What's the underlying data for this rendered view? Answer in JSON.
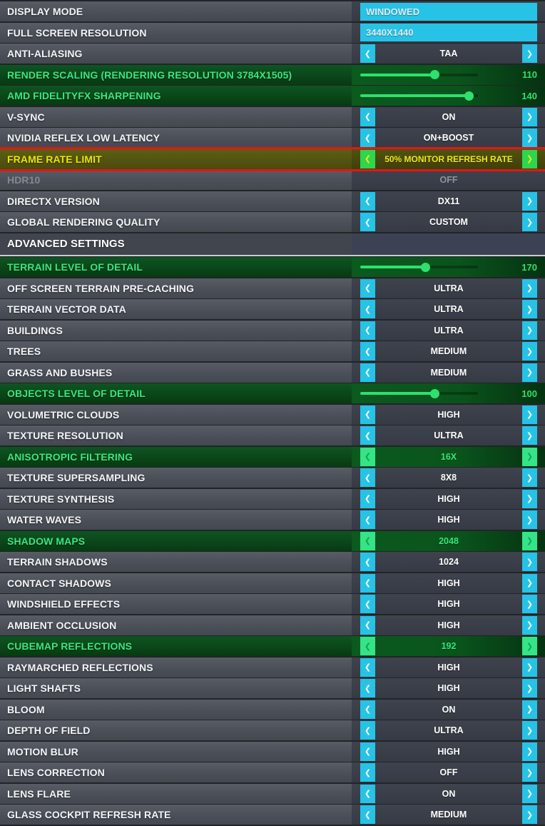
{
  "icons": {
    "prev": "❮",
    "next": "❯"
  },
  "colors": {
    "accent_cyan": "#26c3e6",
    "accent_green": "#2ee06e",
    "selected_yellow": "#ece400",
    "selected_border_red": "#e81414"
  },
  "rows": [
    {
      "label": "DISPLAY MODE",
      "type": "input",
      "value": "WINDOWED",
      "state": "normal"
    },
    {
      "label": "FULL SCREEN RESOLUTION",
      "type": "input",
      "value": "3440X1440",
      "state": "normal"
    },
    {
      "label": "ANTI-ALIASING",
      "type": "stepper",
      "value": "TAA",
      "state": "normal"
    },
    {
      "label": "RENDER SCALING (RENDERING RESOLUTION 3784X1505)",
      "type": "slider",
      "value": "110",
      "thumb_percent": 63,
      "state": "modified"
    },
    {
      "label": "AMD FIDELITYFX SHARPENING",
      "type": "slider",
      "value": "140",
      "thumb_percent": 92,
      "state": "modified"
    },
    {
      "label": "V-SYNC",
      "type": "stepper",
      "value": "ON",
      "state": "normal"
    },
    {
      "label": "NVIDIA REFLEX LOW LATENCY",
      "type": "stepper",
      "value": "ON+BOOST",
      "state": "normal"
    },
    {
      "label": "FRAME RATE LIMIT",
      "type": "stepper",
      "value": "50% MONITOR REFRESH RATE",
      "state": "selected"
    },
    {
      "label": "HDR10",
      "type": "disabled",
      "value": "OFF",
      "state": "disabled"
    },
    {
      "label": "DIRECTX VERSION",
      "type": "stepper",
      "value": "DX11",
      "state": "normal"
    },
    {
      "label": "GLOBAL RENDERING QUALITY",
      "type": "stepper",
      "value": "CUSTOM",
      "state": "normal"
    },
    {
      "label": "ADVANCED SETTINGS",
      "type": "header",
      "value": "",
      "state": "normal"
    },
    {
      "label": "TERRAIN LEVEL OF DETAIL",
      "type": "slider",
      "value": "170",
      "thumb_percent": 55,
      "state": "modified"
    },
    {
      "label": "OFF SCREEN TERRAIN PRE-CACHING",
      "type": "stepper",
      "value": "ULTRA",
      "state": "normal"
    },
    {
      "label": "TERRAIN VECTOR DATA",
      "type": "stepper",
      "value": "ULTRA",
      "state": "normal"
    },
    {
      "label": "BUILDINGS",
      "type": "stepper",
      "value": "ULTRA",
      "state": "normal"
    },
    {
      "label": "TREES",
      "type": "stepper",
      "value": "MEDIUM",
      "state": "normal"
    },
    {
      "label": "GRASS AND BUSHES",
      "type": "stepper",
      "value": "MEDIUM",
      "state": "normal"
    },
    {
      "label": "OBJECTS LEVEL OF DETAIL",
      "type": "slider",
      "value": "100",
      "thumb_percent": 63,
      "state": "modified"
    },
    {
      "label": "VOLUMETRIC CLOUDS",
      "type": "stepper",
      "value": "HIGH",
      "state": "normal"
    },
    {
      "label": "TEXTURE RESOLUTION",
      "type": "stepper",
      "value": "ULTRA",
      "state": "normal"
    },
    {
      "label": "ANISOTROPIC FILTERING",
      "type": "stepper",
      "value": "16X",
      "state": "modified"
    },
    {
      "label": "TEXTURE SUPERSAMPLING",
      "type": "stepper",
      "value": "8X8",
      "state": "normal"
    },
    {
      "label": "TEXTURE SYNTHESIS",
      "type": "stepper",
      "value": "HIGH",
      "state": "normal"
    },
    {
      "label": "WATER WAVES",
      "type": "stepper",
      "value": "HIGH",
      "state": "normal"
    },
    {
      "label": "SHADOW MAPS",
      "type": "stepper",
      "value": "2048",
      "state": "modified"
    },
    {
      "label": "TERRAIN SHADOWS",
      "type": "stepper",
      "value": "1024",
      "state": "normal"
    },
    {
      "label": "CONTACT SHADOWS",
      "type": "stepper",
      "value": "HIGH",
      "state": "normal"
    },
    {
      "label": "WINDSHIELD EFFECTS",
      "type": "stepper",
      "value": "HIGH",
      "state": "normal"
    },
    {
      "label": "AMBIENT OCCLUSION",
      "type": "stepper",
      "value": "HIGH",
      "state": "normal"
    },
    {
      "label": "CUBEMAP REFLECTIONS",
      "type": "stepper",
      "value": "192",
      "state": "modified"
    },
    {
      "label": "RAYMARCHED REFLECTIONS",
      "type": "stepper",
      "value": "HIGH",
      "state": "normal"
    },
    {
      "label": "LIGHT SHAFTS",
      "type": "stepper",
      "value": "HIGH",
      "state": "normal"
    },
    {
      "label": "BLOOM",
      "type": "stepper",
      "value": "ON",
      "state": "normal"
    },
    {
      "label": "DEPTH OF FIELD",
      "type": "stepper",
      "value": "ULTRA",
      "state": "normal"
    },
    {
      "label": "MOTION BLUR",
      "type": "stepper",
      "value": "HIGH",
      "state": "normal"
    },
    {
      "label": "LENS CORRECTION",
      "type": "stepper",
      "value": "OFF",
      "state": "normal"
    },
    {
      "label": "LENS FLARE",
      "type": "stepper",
      "value": "ON",
      "state": "normal"
    },
    {
      "label": "GLASS COCKPIT REFRESH RATE",
      "type": "stepper",
      "value": "MEDIUM",
      "state": "normal"
    }
  ]
}
